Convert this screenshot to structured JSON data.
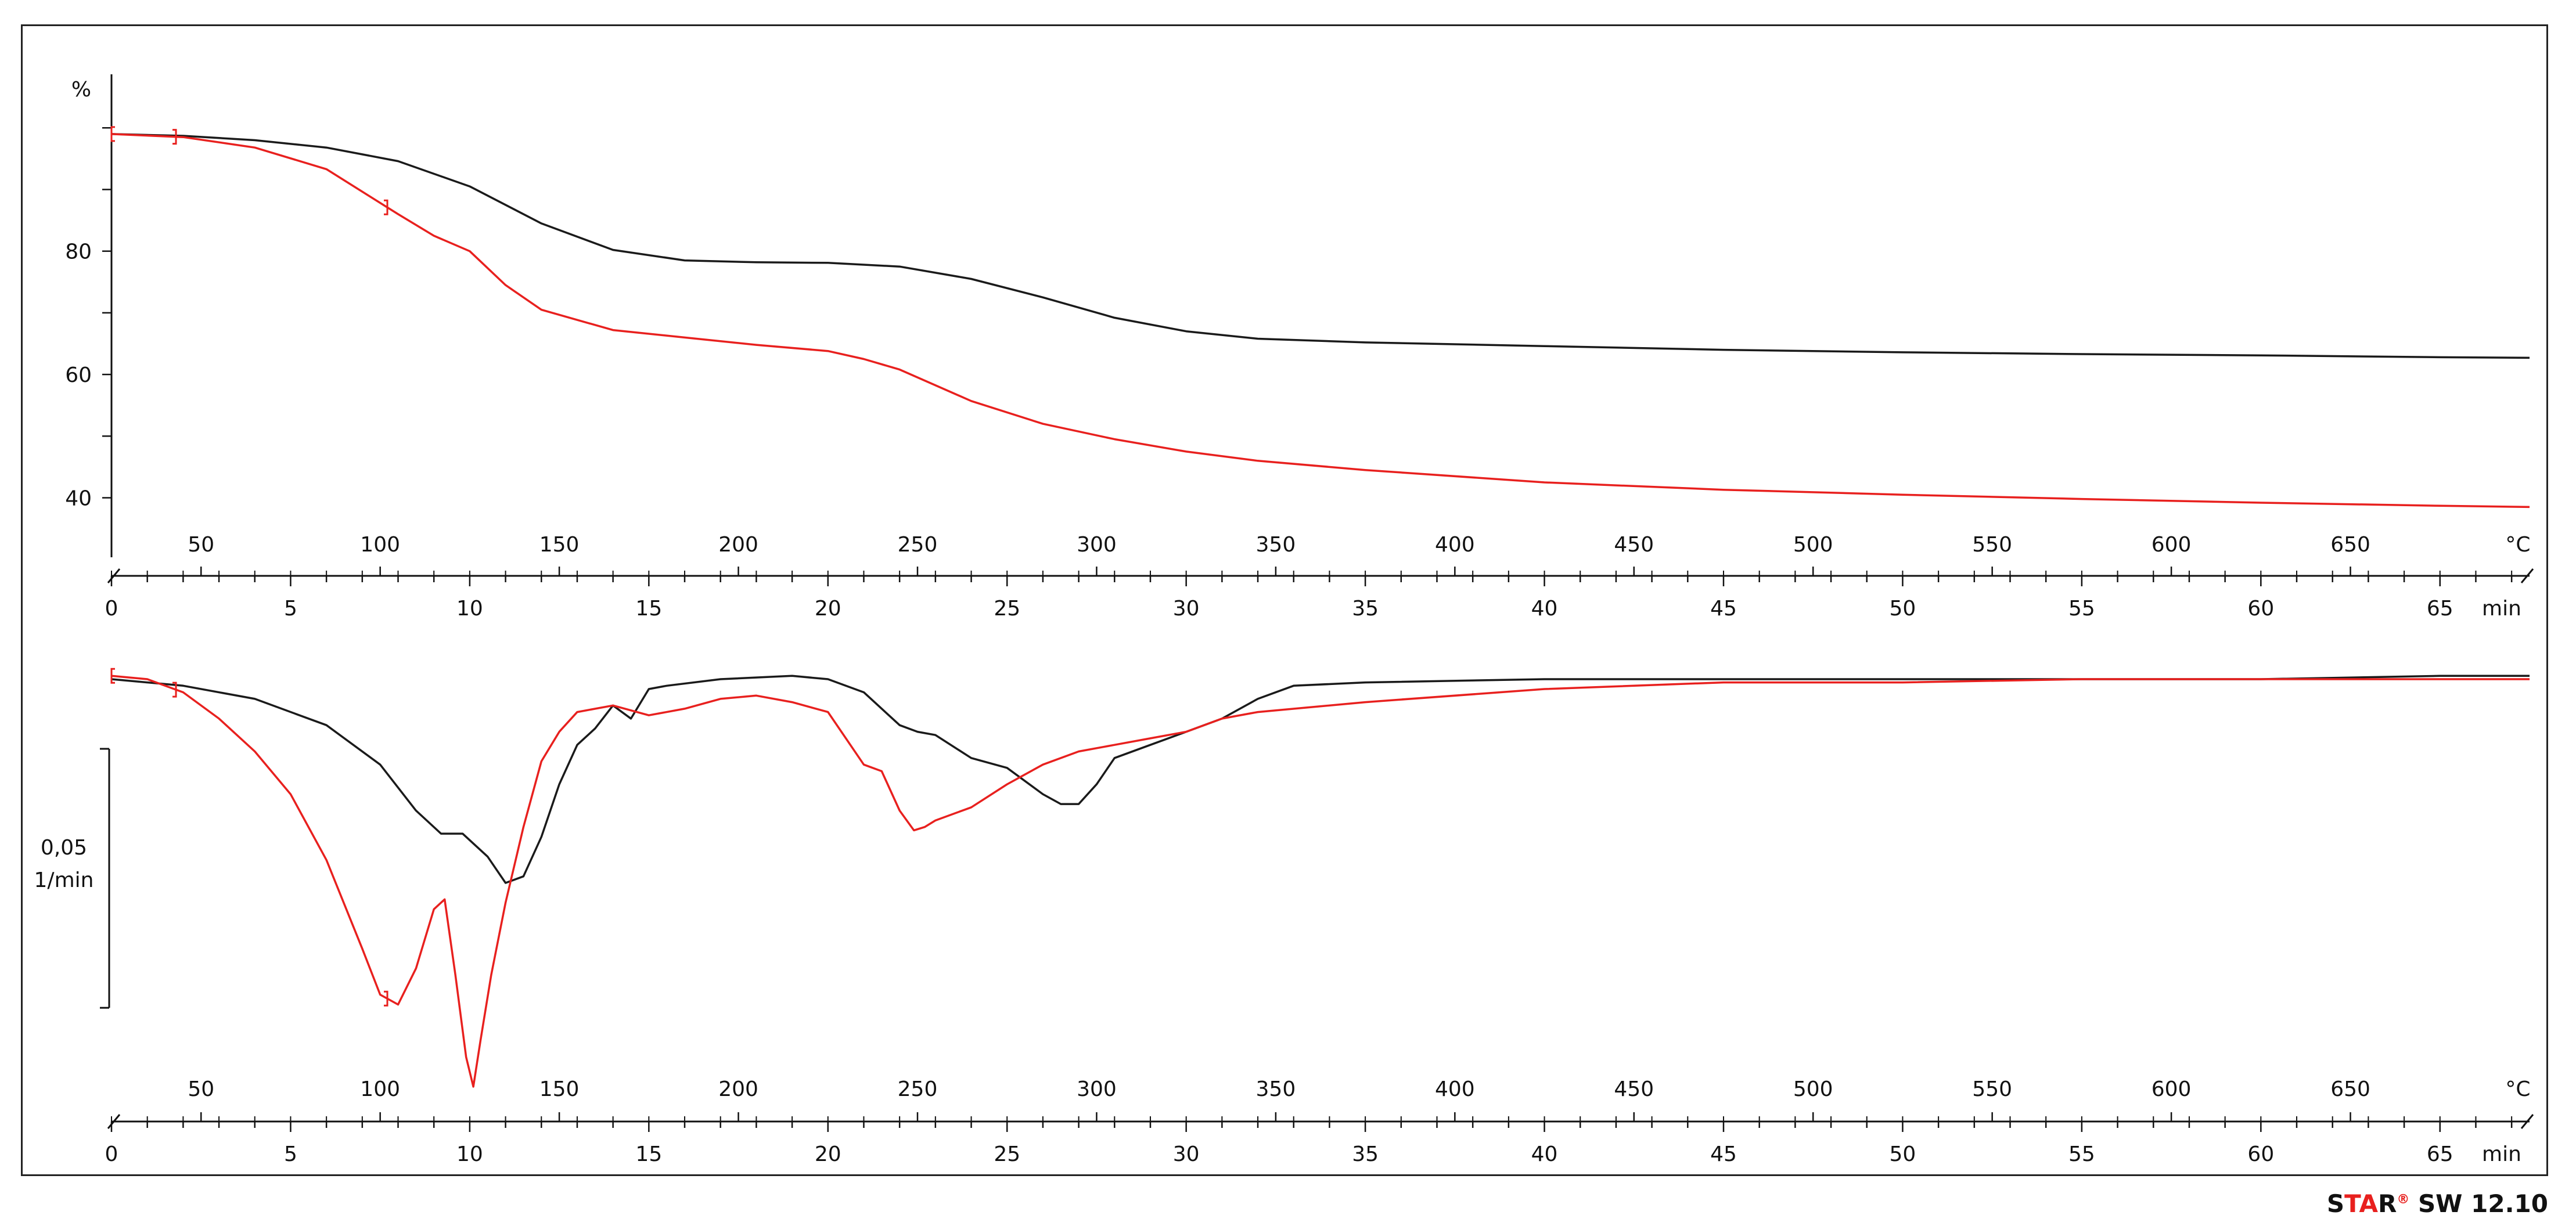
{
  "colors": {
    "sample_a": "#1a1a1a",
    "sample_b": "#e8201e",
    "axis": "#111111"
  },
  "watermark": {
    "star_prefix": "S",
    "star_middle": "TA",
    "star_suffix": "R",
    "registered": "®",
    "version": "SW 12.10"
  },
  "chart_data": [
    {
      "type": "line",
      "title": "",
      "ylabel": "%",
      "xlabel_time": "min",
      "xlabel_temp": "°C",
      "ylim": [
        36,
        102
      ],
      "xlim_min": [
        0,
        67.5
      ],
      "yticks": [
        40,
        60,
        80
      ],
      "time_ticks": [
        0,
        5,
        10,
        15,
        20,
        25,
        30,
        35,
        40,
        45,
        50,
        55,
        60,
        65
      ],
      "temp_ticks": [
        50,
        100,
        150,
        200,
        250,
        300,
        350,
        400,
        450,
        500,
        550,
        600,
        650
      ],
      "temp_scale": {
        "t0_min": 0,
        "temp0_C": 25,
        "rate_C_per_min": 10
      },
      "series": [
        {
          "color": "black",
          "x_min": [
            0,
            2,
            4,
            6,
            8,
            10,
            12,
            14,
            16,
            18,
            20,
            22,
            24,
            26,
            28,
            30,
            32,
            35,
            40,
            45,
            50,
            55,
            60,
            65,
            67.5
          ],
          "y": [
            99.0,
            98.7,
            98.0,
            96.8,
            94.6,
            90.5,
            84.5,
            80.2,
            78.5,
            78.2,
            78.1,
            77.5,
            75.5,
            72.5,
            69.2,
            67.0,
            65.8,
            65.2,
            64.6,
            64.0,
            63.6,
            63.3,
            63.1,
            62.8,
            62.7
          ]
        },
        {
          "color": "red",
          "x_min": [
            0,
            2,
            4,
            6,
            8,
            9,
            10,
            11,
            12,
            14,
            16,
            18,
            20,
            21,
            22,
            24,
            26,
            28,
            30,
            32,
            35,
            40,
            45,
            50,
            55,
            60,
            65,
            67.5
          ],
          "y": [
            99.0,
            98.5,
            96.8,
            93.3,
            86.0,
            82.5,
            80.0,
            74.5,
            70.5,
            67.2,
            66.0,
            64.8,
            63.8,
            62.5,
            60.8,
            55.7,
            52.0,
            49.5,
            47.5,
            46.0,
            44.5,
            42.5,
            41.3,
            40.5,
            39.8,
            39.2,
            38.7,
            38.5
          ]
        }
      ],
      "range_markers": [
        {
          "color": "red",
          "x_min": [
            0,
            1.8
          ]
        },
        {
          "color": "red",
          "x_min": [
            7.7
          ]
        }
      ]
    },
    {
      "type": "line",
      "title": "",
      "ylabel": "0,05",
      "yunit": "1/min",
      "xlabel_time": "min",
      "xlabel_temp": "°C",
      "ylim": [
        -0.124,
        0.006
      ],
      "scale_bar": [
        -0.1,
        0.0
      ],
      "time_ticks": [
        0,
        5,
        10,
        15,
        20,
        25,
        30,
        35,
        40,
        45,
        50,
        55,
        60,
        65
      ],
      "temp_ticks": [
        50,
        100,
        150,
        200,
        250,
        300,
        350,
        400,
        450,
        500,
        550,
        600,
        650
      ],
      "series": [
        {
          "color": "black",
          "x_min": [
            0,
            2,
            4,
            6,
            7.5,
            8.5,
            9.2,
            9.8,
            10.5,
            11,
            11.5,
            12,
            12.5,
            13,
            13.5,
            14,
            14.5,
            15,
            15.5,
            17,
            19,
            20,
            21,
            22,
            22.5,
            23,
            24,
            25,
            26,
            26.5,
            27,
            27.5,
            28,
            29,
            30,
            31,
            32,
            33,
            35,
            40,
            45,
            50,
            55,
            60,
            65,
            67.5
          ],
          "y": [
            0,
            -0.002,
            -0.006,
            -0.014,
            -0.026,
            -0.04,
            -0.047,
            -0.047,
            -0.054,
            -0.062,
            -0.06,
            -0.048,
            -0.032,
            -0.02,
            -0.015,
            -0.008,
            -0.012,
            -0.003,
            -0.002,
            0.0,
            0.001,
            0.0,
            -0.004,
            -0.014,
            -0.016,
            -0.017,
            -0.024,
            -0.027,
            -0.035,
            -0.038,
            -0.038,
            -0.032,
            -0.024,
            -0.02,
            -0.016,
            -0.012,
            -0.006,
            -0.002,
            -0.001,
            0.0,
            0.0,
            0.0,
            0.0,
            0.0,
            0.001,
            0.001
          ]
        },
        {
          "color": "red",
          "x_min": [
            0,
            1,
            2,
            3,
            4,
            5,
            6,
            7,
            7.5,
            8,
            8.5,
            9,
            9.3,
            9.6,
            9.9,
            10.1,
            10.3,
            10.6,
            11,
            11.5,
            12,
            12.5,
            13,
            14,
            15,
            16,
            17,
            18,
            19,
            20,
            21,
            21.5,
            22,
            22.4,
            22.7,
            23,
            24,
            25,
            26,
            27,
            28,
            29,
            30,
            31,
            32,
            35,
            40,
            45,
            50,
            55,
            60,
            65,
            67.5
          ],
          "y": [
            0.001,
            0.0,
            -0.004,
            -0.012,
            -0.022,
            -0.035,
            -0.055,
            -0.082,
            -0.096,
            -0.099,
            -0.088,
            -0.07,
            -0.067,
            -0.09,
            -0.115,
            -0.124,
            -0.11,
            -0.09,
            -0.068,
            -0.045,
            -0.025,
            -0.016,
            -0.01,
            -0.008,
            -0.011,
            -0.009,
            -0.006,
            -0.005,
            -0.007,
            -0.01,
            -0.026,
            -0.028,
            -0.04,
            -0.046,
            -0.045,
            -0.043,
            -0.039,
            -0.032,
            -0.026,
            -0.022,
            -0.02,
            -0.018,
            -0.016,
            -0.012,
            -0.01,
            -0.007,
            -0.003,
            -0.001,
            -0.001,
            0.0,
            0.0,
            0.0,
            0.0
          ]
        }
      ],
      "range_markers": [
        {
          "color": "red",
          "x_min": [
            0,
            1.8
          ]
        },
        {
          "color": "red",
          "x_min": [
            7.7
          ]
        }
      ]
    }
  ]
}
